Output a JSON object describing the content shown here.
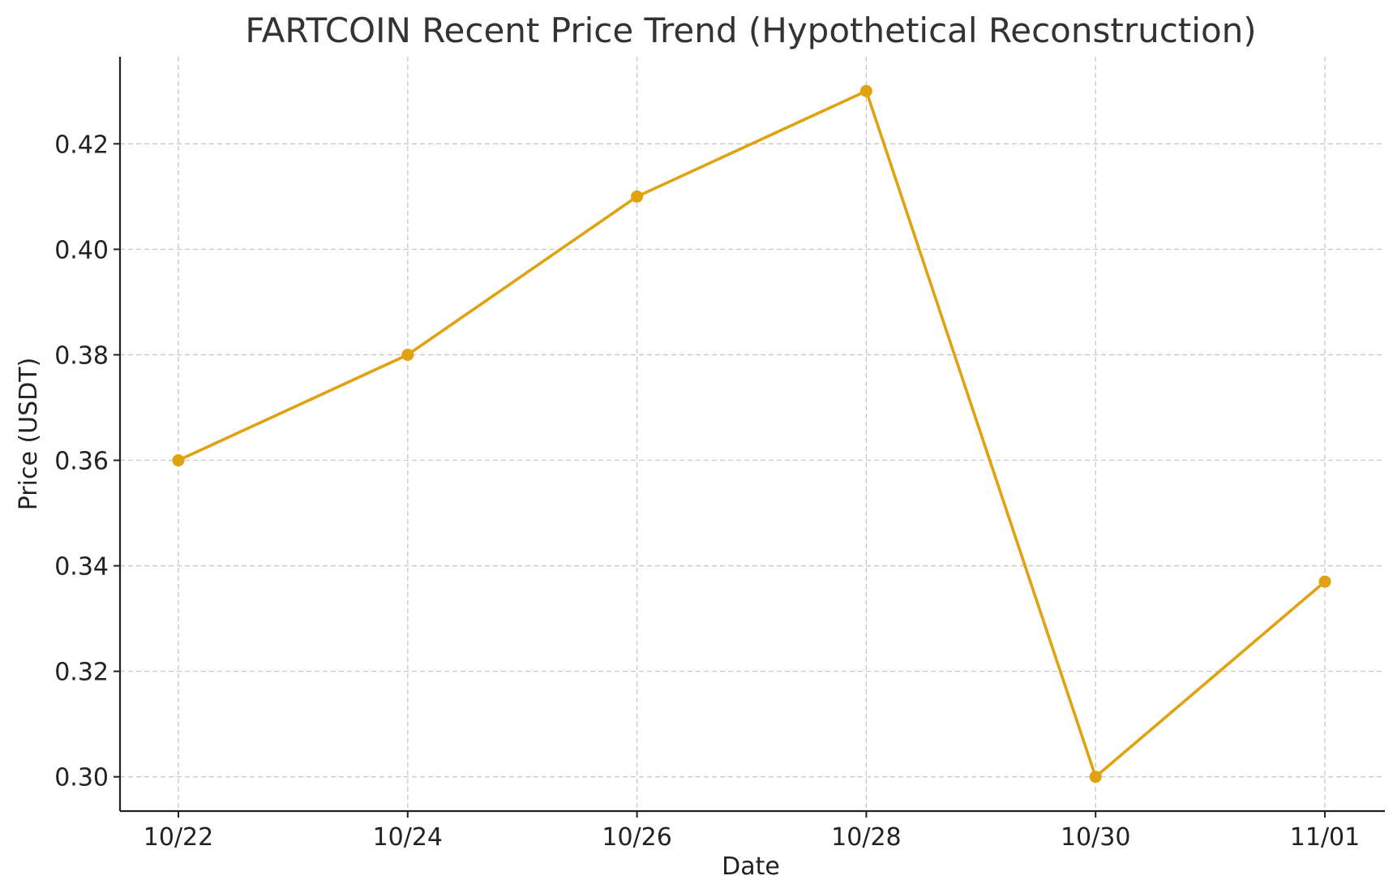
{
  "chart_data": {
    "type": "line",
    "title": "FARTCOIN Recent Price Trend (Hypothetical Reconstruction)",
    "xlabel": "Date",
    "ylabel": "Price (USDT)",
    "x_ticks": [
      "10/22",
      "10/24",
      "10/26",
      "10/28",
      "10/30",
      "11/01"
    ],
    "y_ticks": [
      "0.30",
      "0.32",
      "0.34",
      "0.36",
      "0.38",
      "0.40",
      "0.42"
    ],
    "ylim": [
      0.2935,
      0.4365
    ],
    "grid": true,
    "series": [
      {
        "color": "#e0a20f",
        "points": [
          {
            "x": "10/22",
            "y": 0.36
          },
          {
            "x": "10/24",
            "y": 0.38
          },
          {
            "x": "10/26",
            "y": 0.41
          },
          {
            "x": "10/28",
            "y": 0.43
          },
          {
            "x": "10/30",
            "y": 0.3
          },
          {
            "x": "11/01",
            "y": 0.337
          }
        ]
      }
    ]
  }
}
